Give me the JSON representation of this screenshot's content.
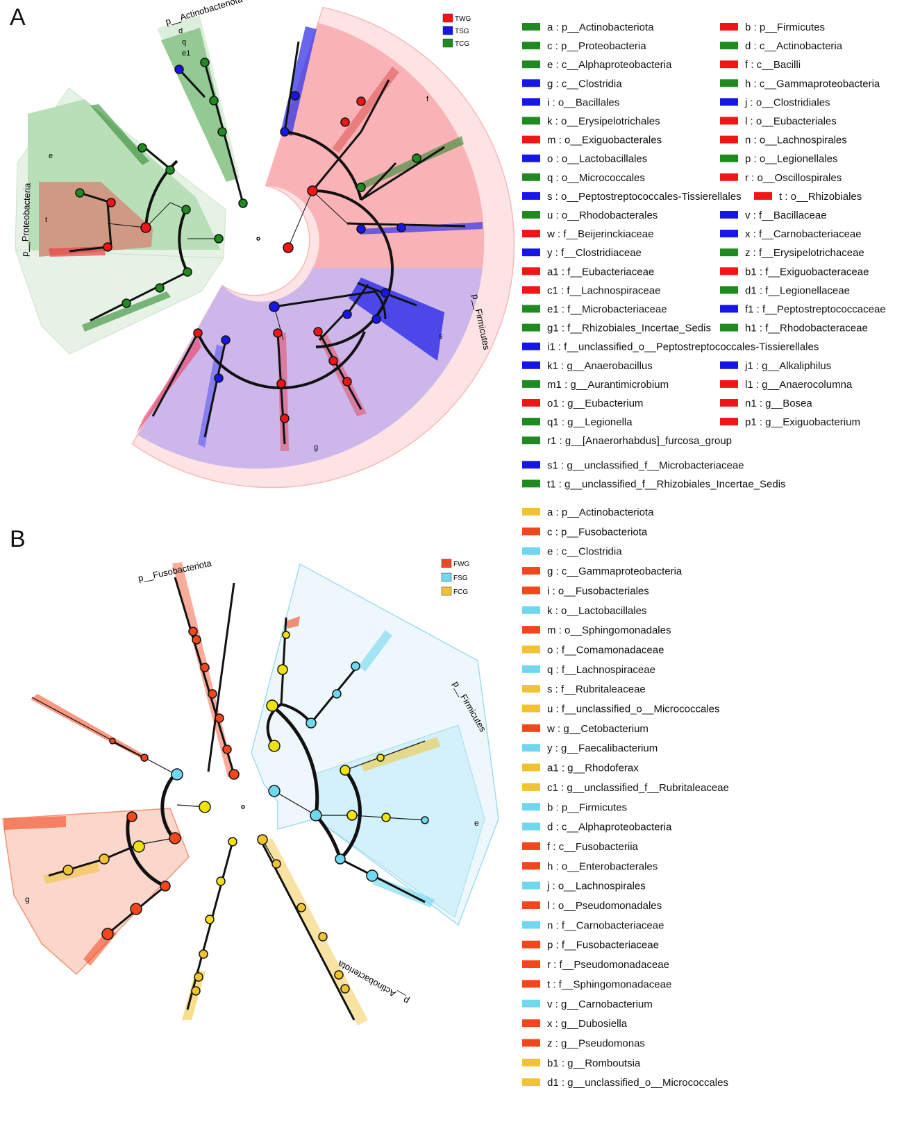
{
  "figure": {
    "panels": [
      {
        "label": "A",
        "group_legend": [
          {
            "name": "TWG",
            "color": "#f01616"
          },
          {
            "name": "TSG",
            "color": "#1616e6"
          },
          {
            "name": "TCG",
            "color": "#1f8a1f"
          }
        ],
        "clade_labels": {
          "actino": "p__Actinobacteriota",
          "proteo": "p__Proteobacteria",
          "firmi": "p__Firmicutes"
        },
        "wedge_letters": [
          {
            "text": "d",
            "color": "#1f8a1f"
          },
          {
            "text": "q",
            "color": "#1f8a1f"
          },
          {
            "text": "e1",
            "color": "#1f8a1f"
          },
          {
            "text": "f",
            "color": "#f01616"
          },
          {
            "text": "e",
            "color": "#1f8a1f"
          },
          {
            "text": "t",
            "color": "#f01616"
          },
          {
            "text": "g",
            "color": "#1616e6"
          },
          {
            "text": "s",
            "color": "#1616e6"
          }
        ],
        "legend": [
          {
            "text": "a : p__Actinobacteriota",
            "color": "#1f8a1f"
          },
          {
            "text": "b : p__Firmicutes",
            "color": "#f01616"
          },
          {
            "text": "c : p__Proteobacteria",
            "color": "#1f8a1f"
          },
          {
            "text": "d : c__Actinobacteria",
            "color": "#1f8a1f"
          },
          {
            "text": "e : c__Alphaproteobacteria",
            "color": "#1f8a1f"
          },
          {
            "text": "f : c__Bacilli",
            "color": "#f01616"
          },
          {
            "text": "g : c__Clostridia",
            "color": "#1616e6"
          },
          {
            "text": "h : c__Gammaproteobacteria",
            "color": "#1f8a1f"
          },
          {
            "text": "i : o__Bacillales",
            "color": "#1616e6"
          },
          {
            "text": "j : o__Clostridiales",
            "color": "#1616e6"
          },
          {
            "text": "k : o__Erysipelotrichales",
            "color": "#1f8a1f"
          },
          {
            "text": "l : o__Eubacteriales",
            "color": "#f01616"
          },
          {
            "text": "m : o__Exiguobacterales",
            "color": "#f01616"
          },
          {
            "text": "n : o__Lachnospirales",
            "color": "#f01616"
          },
          {
            "text": "o : o__Lactobacillales",
            "color": "#1616e6"
          },
          {
            "text": "p : o__Legionellales",
            "color": "#1f8a1f"
          },
          {
            "text": "q : o__Micrococcales",
            "color": "#1f8a1f"
          },
          {
            "text": "r : o__Oscillospirales",
            "color": "#f01616"
          },
          {
            "text": "s : o__Peptostreptococcales-Tissierellales",
            "color": "#1616e6"
          },
          {
            "text": "t : o__Rhizobiales",
            "color": "#f01616"
          },
          {
            "text": "u : o__Rhodobacterales",
            "color": "#1f8a1f"
          },
          {
            "text": "v : f__Bacillaceae",
            "color": "#1616e6"
          },
          {
            "text": "w : f__Beijerinckiaceae",
            "color": "#f01616"
          },
          {
            "text": "x : f__Carnobacteriaceae",
            "color": "#1616e6"
          },
          {
            "text": "y : f__Clostridiaceae",
            "color": "#1616e6"
          },
          {
            "text": "z : f__Erysipelotrichaceae",
            "color": "#1f8a1f"
          },
          {
            "text": "a1 : f__Eubacteriaceae",
            "color": "#f01616"
          },
          {
            "text": "b1 : f__Exiguobacteraceae",
            "color": "#f01616"
          },
          {
            "text": "c1 : f__Lachnospiraceae",
            "color": "#f01616"
          },
          {
            "text": "d1 : f__Legionellaceae",
            "color": "#1f8a1f"
          },
          {
            "text": "e1 : f__Microbacteriaceae",
            "color": "#1f8a1f"
          },
          {
            "text": "f1 : f__Peptostreptococcaceae",
            "color": "#1616e6"
          },
          {
            "text": "g1 : f__Rhizobiales_Incertae_Sedis",
            "color": "#1f8a1f"
          },
          {
            "text": "h1 : f__Rhodobacteraceae",
            "color": "#1f8a1f"
          },
          {
            "text": "i1 : f__unclassified_o__Peptostreptococcales-Tissierellales",
            "color": "#1616e6"
          },
          {
            "text": "k1 : g__Anaerobacillus",
            "color": "#1616e6"
          },
          {
            "text": "j1 : g__Alkaliphilus",
            "color": "#1616e6"
          },
          {
            "text": "m1 : g__Aurantimicrobium",
            "color": "#1f8a1f"
          },
          {
            "text": "l1 : g__Anaerocolumna",
            "color": "#f01616"
          },
          {
            "text": "o1 : g__Eubacterium",
            "color": "#f01616"
          },
          {
            "text": "n1 : g__Bosea",
            "color": "#f01616"
          },
          {
            "text": "q1 : g__Legionella",
            "color": "#1f8a1f"
          },
          {
            "text": "p1 : g__Exiguobacterium",
            "color": "#f01616"
          },
          {
            "text": "r1 : g__[Anaerorhabdus]_furcosa_group",
            "color": "#1f8a1f"
          },
          {
            "text": "s1 : g__unclassified_f__Microbacteriaceae",
            "color": "#1616e6"
          },
          {
            "text": "t1 : g__unclassified_f__Rhizobiales_Incertae_Sedis",
            "color": "#1f8a1f"
          }
        ]
      },
      {
        "label": "B",
        "group_legend": [
          {
            "name": "FWG",
            "color": "#f2461c"
          },
          {
            "name": "FSG",
            "color": "#6fd7ee"
          },
          {
            "name": "FCG",
            "color": "#f1c232"
          }
        ],
        "clade_labels": {
          "fuso": "p__Fusobacteriota",
          "firmi": "p__Firmicutes",
          "actino": "p__Actinobacteriota"
        },
        "wedge_letters": [
          {
            "text": "e",
            "color": "#6fd7ee"
          },
          {
            "text": "g",
            "color": "#f2461c"
          }
        ],
        "legend": [
          {
            "text": "a : p__Actinobacteriota",
            "color": "#f1c232"
          },
          {
            "text": "c : p__Fusobacteriota",
            "color": "#f2461c"
          },
          {
            "text": "e : c__Clostridia",
            "color": "#6fd7ee"
          },
          {
            "text": "g : c__Gammaproteobacteria",
            "color": "#f2461c"
          },
          {
            "text": "i : o__Fusobacteriales",
            "color": "#f2461c"
          },
          {
            "text": "k : o__Lactobacillales",
            "color": "#6fd7ee"
          },
          {
            "text": "m : o__Sphingomonadales",
            "color": "#f2461c"
          },
          {
            "text": "o : f__Comamonadaceae",
            "color": "#f1c232"
          },
          {
            "text": "q : f__Lachnospiraceae",
            "color": "#6fd7ee"
          },
          {
            "text": "s : f__Rubritaleaceae",
            "color": "#f1c232"
          },
          {
            "text": "u : f__unclassified_o__Micrococcales",
            "color": "#f1c232"
          },
          {
            "text": "w : g__Cetobacterium",
            "color": "#f2461c"
          },
          {
            "text": "y : g__Faecalibacterium",
            "color": "#6fd7ee"
          },
          {
            "text": "a1 : g__Rhodoferax",
            "color": "#f1c232"
          },
          {
            "text": "c1 : g__unclassified_f__Rubritaleaceae",
            "color": "#f1c232"
          },
          {
            "text": "b : p__Firmicutes",
            "color": "#6fd7ee"
          },
          {
            "text": "d : c__Alphaproteobacteria",
            "color": "#6fd7ee"
          },
          {
            "text": "f : c__Fusobacteriia",
            "color": "#f2461c"
          },
          {
            "text": "h : o__Enterobacterales",
            "color": "#f2461c"
          },
          {
            "text": "j : o__Lachnospirales",
            "color": "#6fd7ee"
          },
          {
            "text": "l : o__Pseudomonadales",
            "color": "#f2461c"
          },
          {
            "text": "n : f__Carnobacteriaceae",
            "color": "#6fd7ee"
          },
          {
            "text": "p : f__Fusobacteriaceae",
            "color": "#f2461c"
          },
          {
            "text": "r : f__Pseudomonadaceae",
            "color": "#f2461c"
          },
          {
            "text": "t : f__Sphingomonadaceae",
            "color": "#f2461c"
          },
          {
            "text": "v : g__Carnobacterium",
            "color": "#6fd7ee"
          },
          {
            "text": "x : g__Dubosiella",
            "color": "#f2461c"
          },
          {
            "text": "z : g__Pseudomonas",
            "color": "#f2461c"
          },
          {
            "text": "b1 : g__Romboutsia",
            "color": "#f1c232"
          },
          {
            "text": "d1 : g__unclassified_o__Micrococcales",
            "color": "#f1c232"
          }
        ]
      }
    ]
  }
}
